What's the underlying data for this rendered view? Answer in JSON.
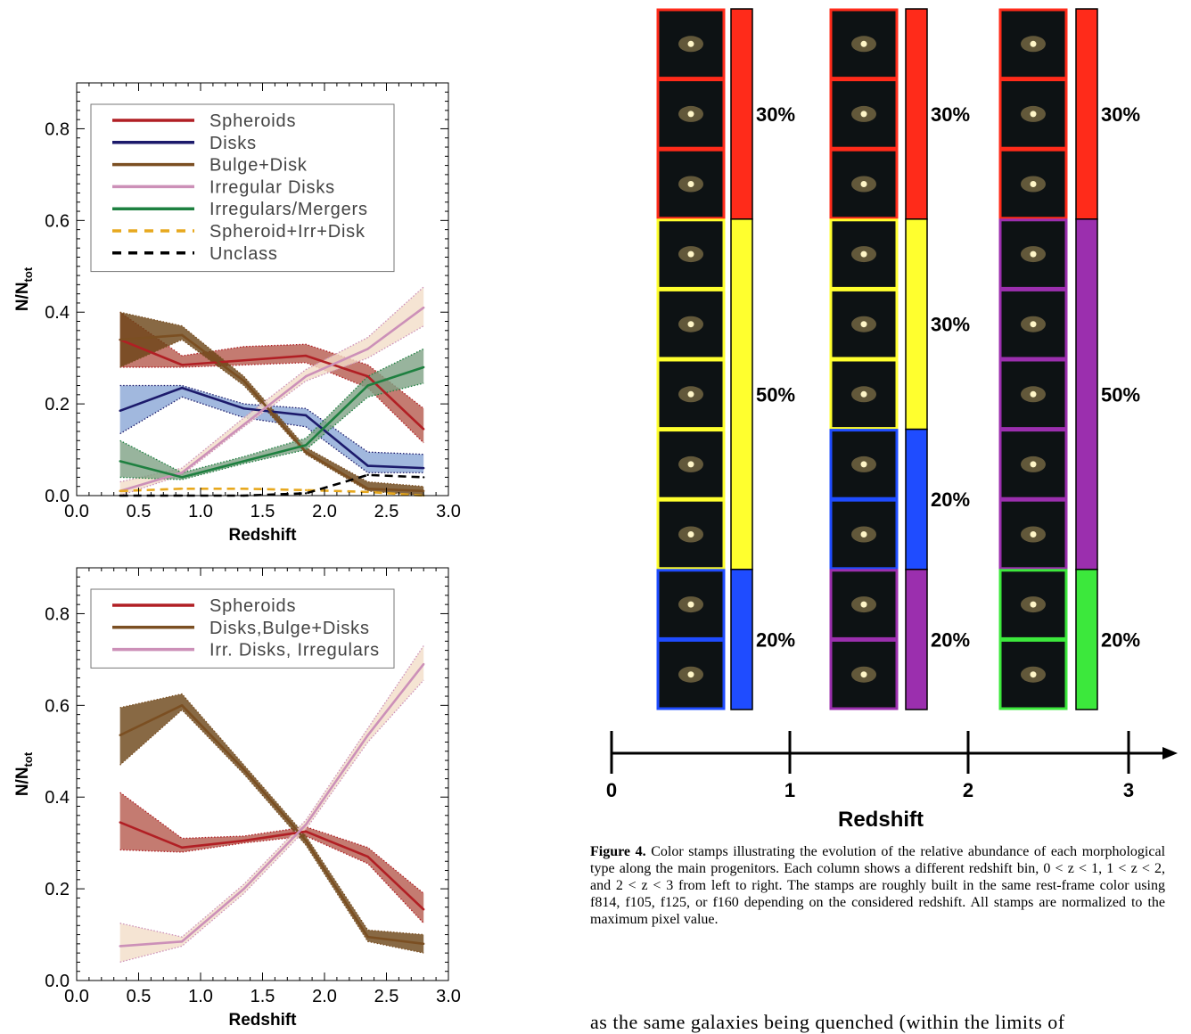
{
  "chart_data": [
    {
      "type": "line",
      "xlabel": "Redshift",
      "ylabel": "N/N_tot",
      "xlim": [
        0,
        3
      ],
      "ylim": [
        0,
        0.9
      ],
      "xticks": [
        "0.0",
        "0.5",
        "1.0",
        "1.5",
        "2.0",
        "2.5",
        "3.0"
      ],
      "yticks": [
        "0.0",
        "0.2",
        "0.4",
        "0.6",
        "0.8"
      ],
      "legend_position": "top-left",
      "x": [
        0.35,
        0.85,
        1.35,
        1.85,
        2.35,
        2.8
      ],
      "series": [
        {
          "name": "Spheroids",
          "color": "#b11f24",
          "fill": "#b55a4e",
          "style": "solid",
          "values": [
            0.34,
            0.285,
            0.295,
            0.305,
            0.26,
            0.145
          ],
          "lower": [
            0.28,
            0.28,
            0.285,
            0.29,
            0.235,
            0.115
          ],
          "upper": [
            0.4,
            0.305,
            0.325,
            0.33,
            0.285,
            0.19
          ]
        },
        {
          "name": "Disks",
          "color": "#1c1a6b",
          "fill": "#8aa6d6",
          "style": "solid",
          "values": [
            0.185,
            0.235,
            0.19,
            0.175,
            0.065,
            0.06
          ],
          "lower": [
            0.135,
            0.215,
            0.17,
            0.15,
            0.05,
            0.05
          ],
          "upper": [
            0.24,
            0.24,
            0.2,
            0.19,
            0.095,
            0.09
          ]
        },
        {
          "name": "Bulge+Disk",
          "color": "#7b4f22",
          "fill": "#6a4415",
          "style": "solid",
          "values": [
            0.34,
            0.35,
            0.25,
            0.095,
            0.015,
            0.01
          ],
          "lower": [
            0.28,
            0.34,
            0.24,
            0.09,
            0.01,
            0.0
          ],
          "upper": [
            0.4,
            0.37,
            0.26,
            0.105,
            0.03,
            0.02
          ]
        },
        {
          "name": "Irregular Disks",
          "color": "#cc90b8",
          "fill": "#f3ddc8",
          "style": "solid",
          "values": [
            0.01,
            0.05,
            0.155,
            0.26,
            0.32,
            0.41
          ],
          "lower": [
            0.0,
            0.045,
            0.15,
            0.25,
            0.3,
            0.37
          ],
          "upper": [
            0.03,
            0.06,
            0.17,
            0.275,
            0.345,
            0.455
          ]
        },
        {
          "name": "Irregulars/Mergers",
          "color": "#1e8040",
          "fill": "#7ea184",
          "style": "solid",
          "values": [
            0.075,
            0.04,
            0.075,
            0.11,
            0.24,
            0.28
          ],
          "lower": [
            0.04,
            0.035,
            0.07,
            0.1,
            0.215,
            0.245
          ],
          "upper": [
            0.12,
            0.05,
            0.085,
            0.125,
            0.26,
            0.32
          ]
        },
        {
          "name": "Spheroid+Irr+Disk",
          "color": "#e7a81e",
          "style": "dashed",
          "values": [
            0.01,
            0.015,
            0.015,
            0.012,
            0.008,
            0.0
          ]
        },
        {
          "name": "Unclass",
          "color": "#000000",
          "style": "dashed",
          "values": [
            0.0,
            0.0,
            0.0,
            0.005,
            0.045,
            0.04
          ]
        }
      ]
    },
    {
      "type": "line",
      "xlabel": "Redshift",
      "ylabel": "N/N_tot",
      "xlim": [
        0,
        3
      ],
      "ylim": [
        0,
        0.9
      ],
      "xticks": [
        "0.0",
        "0.5",
        "1.0",
        "1.5",
        "2.0",
        "2.5",
        "3.0"
      ],
      "yticks": [
        "0.0",
        "0.2",
        "0.4",
        "0.6",
        "0.8"
      ],
      "legend_position": "top-left",
      "x": [
        0.35,
        0.85,
        1.35,
        1.85,
        2.35,
        2.8
      ],
      "series": [
        {
          "name": "Spheroids",
          "color": "#b11f24",
          "fill": "#b55a4e",
          "style": "solid",
          "values": [
            0.345,
            0.29,
            0.305,
            0.325,
            0.27,
            0.155
          ],
          "lower": [
            0.285,
            0.28,
            0.3,
            0.315,
            0.255,
            0.125
          ],
          "upper": [
            0.41,
            0.31,
            0.315,
            0.335,
            0.29,
            0.19
          ]
        },
        {
          "name": "Disks,Bulge+Disks",
          "color": "#7b4f22",
          "fill": "#6a4415",
          "style": "solid",
          "values": [
            0.535,
            0.6,
            0.46,
            0.305,
            0.095,
            0.08
          ],
          "lower": [
            0.47,
            0.59,
            0.45,
            0.295,
            0.085,
            0.06
          ],
          "upper": [
            0.595,
            0.625,
            0.47,
            0.315,
            0.11,
            0.1
          ]
        },
        {
          "name": "Irr. Disks, Irregulars",
          "color": "#cc90b8",
          "fill": "#f3ddc8",
          "style": "solid",
          "values": [
            0.075,
            0.085,
            0.2,
            0.34,
            0.535,
            0.69
          ],
          "lower": [
            0.04,
            0.075,
            0.19,
            0.33,
            0.52,
            0.655
          ],
          "upper": [
            0.125,
            0.095,
            0.21,
            0.35,
            0.55,
            0.73
          ]
        }
      ]
    }
  ],
  "figure4": {
    "columns": [
      {
        "segments": [
          {
            "label": "30%",
            "color": "#ff2b1a",
            "stamps": 3
          },
          {
            "label": "50%",
            "color": "#ffff2e",
            "stamps": 5
          },
          {
            "label": "20%",
            "color": "#1f4cff",
            "stamps": 2
          }
        ]
      },
      {
        "segments": [
          {
            "label": "30%",
            "color": "#ff2b1a",
            "stamps": 3
          },
          {
            "label": "30%",
            "color": "#ffff2e",
            "stamps": 3
          },
          {
            "label": "20%",
            "color": "#1f4cff",
            "stamps": 2
          },
          {
            "label": "20%",
            "color": "#9b2fae",
            "stamps": 2
          }
        ]
      },
      {
        "segments": [
          {
            "label": "30%",
            "color": "#ff2b1a",
            "stamps": 3
          },
          {
            "label": "50%",
            "color": "#9b2fae",
            "stamps": 5
          },
          {
            "label": "20%",
            "color": "#3ce83c",
            "stamps": 2
          }
        ]
      }
    ],
    "axis": {
      "ticks": [
        "0",
        "1",
        "2",
        "3"
      ],
      "label": "Redshift"
    }
  },
  "caption": {
    "lead": "Figure 4.",
    "text": "Color stamps illustrating the evolution of the relative abundance of each morphological type along the main progenitors. Each column shows a different redshift bin, 0 < z < 1, 1 < z < 2, and 2 < z < 3 from left to right. The stamps are roughly built in the same rest-frame color using f814, f105, f125, or f160 depending on the considered redshift. All stamps are normalized to the maximum pixel value."
  },
  "body_text": "as the same galaxies being quenched (within the limits of"
}
